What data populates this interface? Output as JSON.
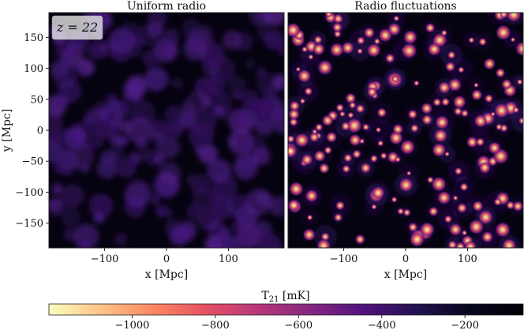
{
  "chart_data": [
    {
      "type": "heatmap",
      "title": "Uniform radio",
      "annotation": "z = 22",
      "xlabel": "x [Mpc]",
      "ylabel": "y [Mpc]",
      "xlim": [
        -190,
        190
      ],
      "ylim": [
        -190,
        190
      ],
      "xticks": [
        -100,
        0,
        100
      ],
      "yticks": [
        -150,
        -100,
        -50,
        0,
        50,
        100,
        150
      ],
      "colormap": "magma_r",
      "value_range_mK": [
        -1200,
        -60
      ],
      "typical_bubble_T21_mK": -120
    },
    {
      "type": "heatmap",
      "title": "Radio fluctuations",
      "xlabel": "x [Mpc]",
      "xlim": [
        -190,
        190
      ],
      "ylim": [
        -190,
        190
      ],
      "xticks": [
        -100,
        0,
        100
      ],
      "colormap": "magma_r",
      "value_range_mK": [
        -1200,
        -60
      ],
      "typical_peak_T21_mK": -700
    }
  ],
  "colorbar": {
    "label": "T21 [mK]",
    "ticks": [
      -1000,
      -800,
      -600,
      -400,
      -200
    ],
    "range": [
      -1200,
      -60
    ],
    "colors": [
      "#fcfdbf",
      "#fec287",
      "#fb8761",
      "#e55064",
      "#b63679",
      "#822681",
      "#50127b",
      "#221150",
      "#07061d",
      "#000004"
    ]
  },
  "labels": {
    "panel_left_title": "Uniform radio",
    "panel_right_title": "Radio fluctuations",
    "z_label": "z = 22",
    "xlabel": "x [Mpc]",
    "ylabel": "y [Mpc]",
    "cb_main": "T",
    "cb_sub": "21",
    "cb_unit": " [mK]"
  }
}
